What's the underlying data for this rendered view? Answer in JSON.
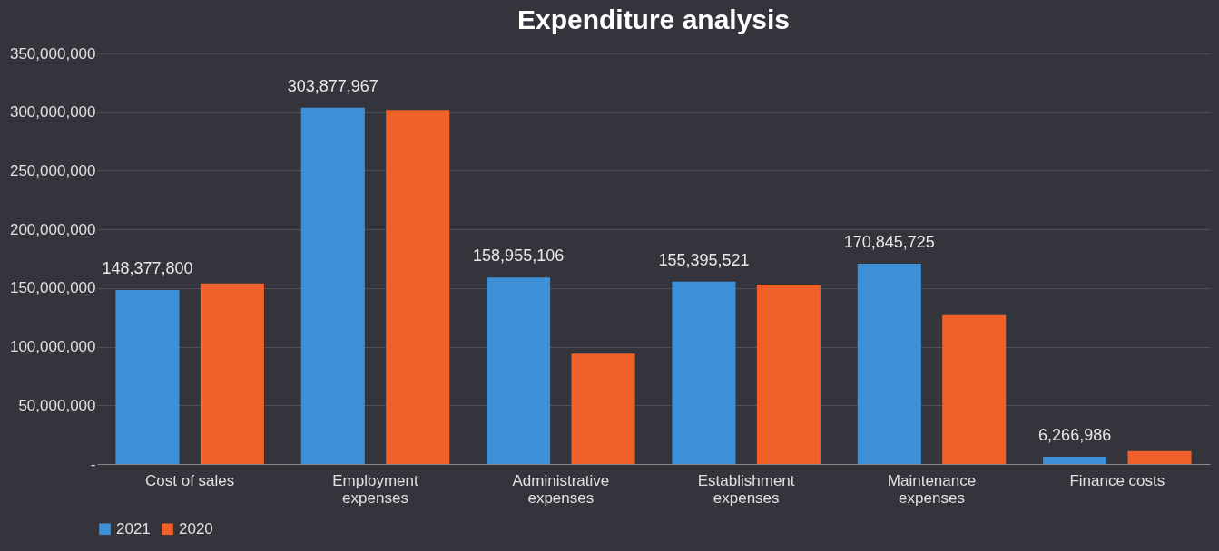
{
  "chart_data": {
    "type": "bar",
    "title": "Expenditure analysis",
    "categories": [
      "Cost of sales",
      "Employment expenses",
      "Administrative expenses",
      "Establishment expenses",
      "Maintenance expenses",
      "Finance costs"
    ],
    "series": [
      {
        "name": "2021",
        "color": "#3d8fd6",
        "values": [
          148377800,
          303877967,
          158955106,
          155395521,
          170845725,
          6266986
        ],
        "value_labels": [
          "148,377,800",
          "303,877,967",
          "158,955,106",
          "155,395,521",
          "170,845,725",
          "6,266,986"
        ]
      },
      {
        "name": "2020",
        "color": "#f0602a",
        "values": [
          154000000,
          302000000,
          94000000,
          153000000,
          127000000,
          11000000
        ]
      }
    ],
    "ylim": [
      0,
      350000000
    ],
    "yticks": [
      {
        "value": 0,
        "label": "-"
      },
      {
        "value": 50000000,
        "label": "50,000,000"
      },
      {
        "value": 100000000,
        "label": "100,000,000"
      },
      {
        "value": 150000000,
        "label": "150,000,000"
      },
      {
        "value": 200000000,
        "label": "200,000,000"
      },
      {
        "value": 250000000,
        "label": "250,000,000"
      },
      {
        "value": 300000000,
        "label": "300,000,000"
      },
      {
        "value": 350000000,
        "label": "350,000,000"
      }
    ],
    "grid": "y",
    "legend": "bottom"
  }
}
